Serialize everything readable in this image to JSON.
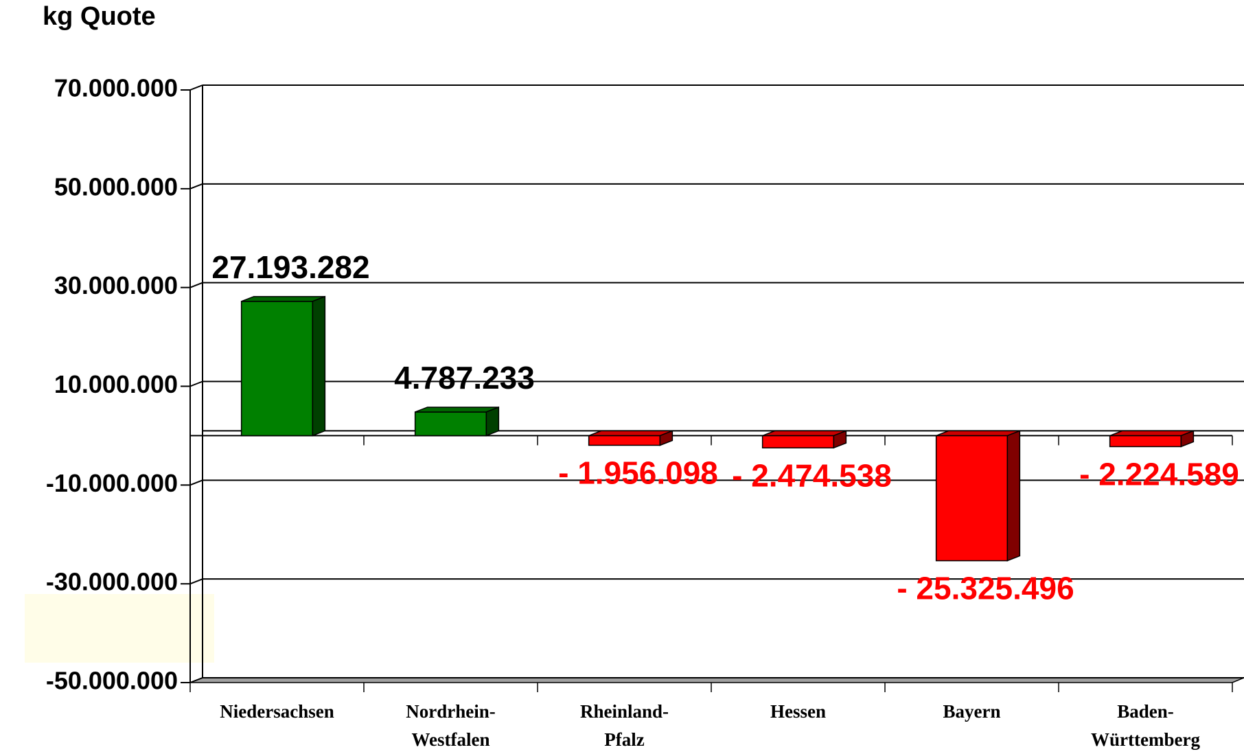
{
  "chart_data": {
    "type": "bar",
    "title": "kg Quote",
    "categories": [
      "Niedersachsen",
      "Nordrhein-Westfalen",
      "Rheinland-Pfalz",
      "Hessen",
      "Bayern",
      "Baden-Württemberg"
    ],
    "values": [
      27193282,
      4787233,
      -1956098,
      -2474538,
      -25325496,
      -2224589
    ],
    "value_labels": [
      "27.193.282",
      "4.787.233",
      "- 1.956.098",
      "- 2.474.538",
      "- 25.325.496",
      "- 2.224.589"
    ],
    "colors": [
      "#008000",
      "#008000",
      "#ff0000",
      "#ff0000",
      "#ff0000",
      "#ff0000"
    ],
    "ylim": [
      -50000000,
      70000000
    ],
    "yticks": [
      {
        "value": -50000000,
        "label": "-50.000.000"
      },
      {
        "value": -30000000,
        "label": "-30.000.000"
      },
      {
        "value": -10000000,
        "label": "-10.000.000"
      },
      {
        "value": 10000000,
        "label": "10.000.000"
      },
      {
        "value": 30000000,
        "label": "30.000.000"
      },
      {
        "value": 50000000,
        "label": "50.000.000"
      },
      {
        "value": 70000000,
        "label": "70.000.000"
      }
    ],
    "grid": true
  }
}
